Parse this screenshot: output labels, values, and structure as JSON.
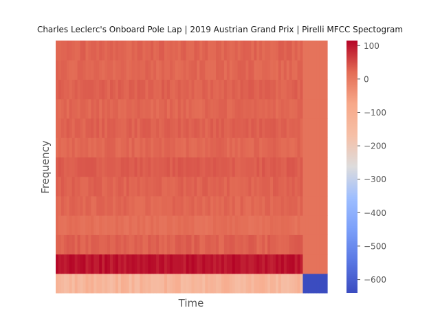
{
  "chart_data": {
    "type": "heatmap",
    "title": "Charles Leclerc's Onboard Pole Lap | 2019 Austrian Grand Prix | Pirelli MFCC Spectogram",
    "xlabel": "Time",
    "ylabel": "Frequency",
    "colormap": "coolwarm",
    "color_range": [
      -640,
      115
    ],
    "colorbar_ticks": [
      100,
      0,
      -100,
      -200,
      -300,
      -400,
      -500,
      -600
    ],
    "colorbar_tick_labels": [
      "100",
      "0",
      "−100",
      "−200",
      "−300",
      "−400",
      "−500",
      "−600"
    ],
    "n_coefficients": 13,
    "n_frames": 100,
    "signal_frames": 91,
    "coefficient_means": [
      -130,
      100,
      30,
      15,
      25,
      30,
      35,
      25,
      30,
      25,
      30,
      25,
      28
    ],
    "coefficient_variation": [
      35,
      15,
      10,
      8,
      8,
      8,
      8,
      8,
      8,
      8,
      8,
      8,
      8
    ],
    "trailing_frame_values": [
      -640,
      10,
      10,
      10,
      10,
      10,
      10,
      10,
      10,
      10,
      10,
      10,
      10
    ],
    "grid": false
  }
}
